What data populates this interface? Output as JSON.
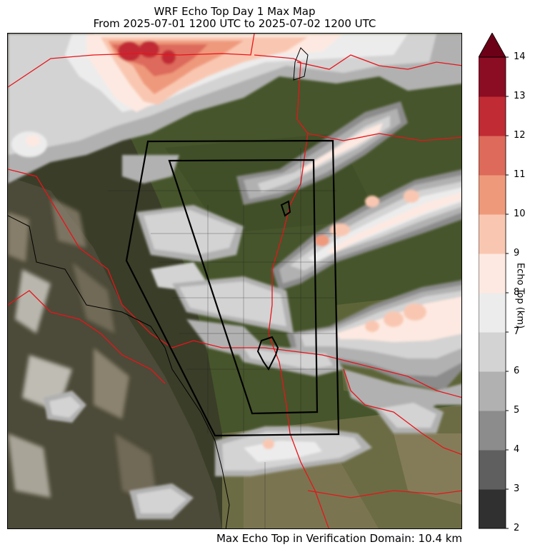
{
  "title_line1": "WRF Echo Top Day 1 Max Map",
  "title_line2": "From 2025-07-01 1200 UTC to 2025-07-02 1200 UTC",
  "colorbar": {
    "label": "Echo Top (km)",
    "ticks": [
      2,
      3,
      4,
      5,
      6,
      7,
      8,
      9,
      10,
      11,
      12,
      13,
      14
    ],
    "extend": "max",
    "colors": [
      "#303030",
      "#5f5f5f",
      "#8c8c8c",
      "#b1b1b1",
      "#d3d3d3",
      "#ececec",
      "#fde9e1",
      "#f9c7b1",
      "#ef997b",
      "#dd6a5b",
      "#c12b34",
      "#8b0d24",
      "#6b0017"
    ]
  },
  "footer": "Max Echo Top in Verification Domain: 10.4 km",
  "map": {
    "basemap": "satellite imagery",
    "overlay_colors": {
      "political_boundary": "#e8141a",
      "verification_domain": "#000000"
    }
  }
}
